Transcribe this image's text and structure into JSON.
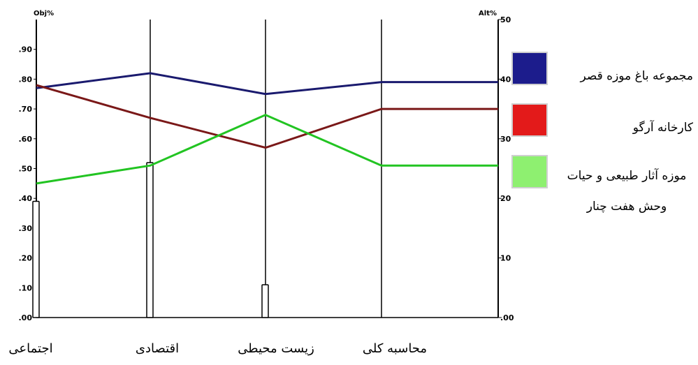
{
  "chart_data": {
    "type": "line",
    "left_axis_title": "Obj%",
    "right_axis_title": "Alt%",
    "left_ticks": [
      ".00",
      ".10",
      ".20",
      ".30",
      ".40",
      ".50",
      ".60",
      ".70",
      ".80",
      ".90"
    ],
    "right_ticks": [
      ".00",
      "10",
      "20",
      "30",
      "40",
      "50"
    ],
    "ylim": [
      0,
      1.0
    ],
    "categories": [
      "اجتماعی",
      "اقتصادی",
      "زیست محیطی",
      "محاسبه کلی"
    ],
    "bars": [
      {
        "category": "اجتماعی",
        "value": 0.39
      },
      {
        "category": "اقتصادی",
        "value": 0.52
      },
      {
        "category": "زیست محیطی",
        "value": 0.11
      },
      {
        "category": "محاسبه کلی",
        "value": 0.0
      }
    ],
    "series": [
      {
        "name": "مجموعه باغ موزه قصر",
        "color": "#1a1a6e",
        "values": [
          0.77,
          0.82,
          0.75,
          0.79
        ],
        "end_value": 0.79
      },
      {
        "name": "کارخانه آرگو",
        "color": "#7a1818",
        "values": [
          0.78,
          0.67,
          0.57,
          0.7
        ],
        "end_value": 0.7
      },
      {
        "name": "موزه آثار طبیعی و حیات وحش هفت چنار",
        "color": "#22c422",
        "values": [
          0.45,
          0.51,
          0.68,
          0.51
        ],
        "end_value": 0.51
      }
    ],
    "grid": false,
    "legend_position": "right"
  },
  "legend": [
    {
      "label": "مجموعه باغ موزه قصر",
      "swatch_color": "#1c1c8c"
    },
    {
      "label": "کارخانه آرگو",
      "swatch_color": "#e31a1a"
    },
    {
      "label": "موزه آثار طبیعی و حیات وحش هفت چنار",
      "swatch_color": "#8ef070"
    }
  ]
}
